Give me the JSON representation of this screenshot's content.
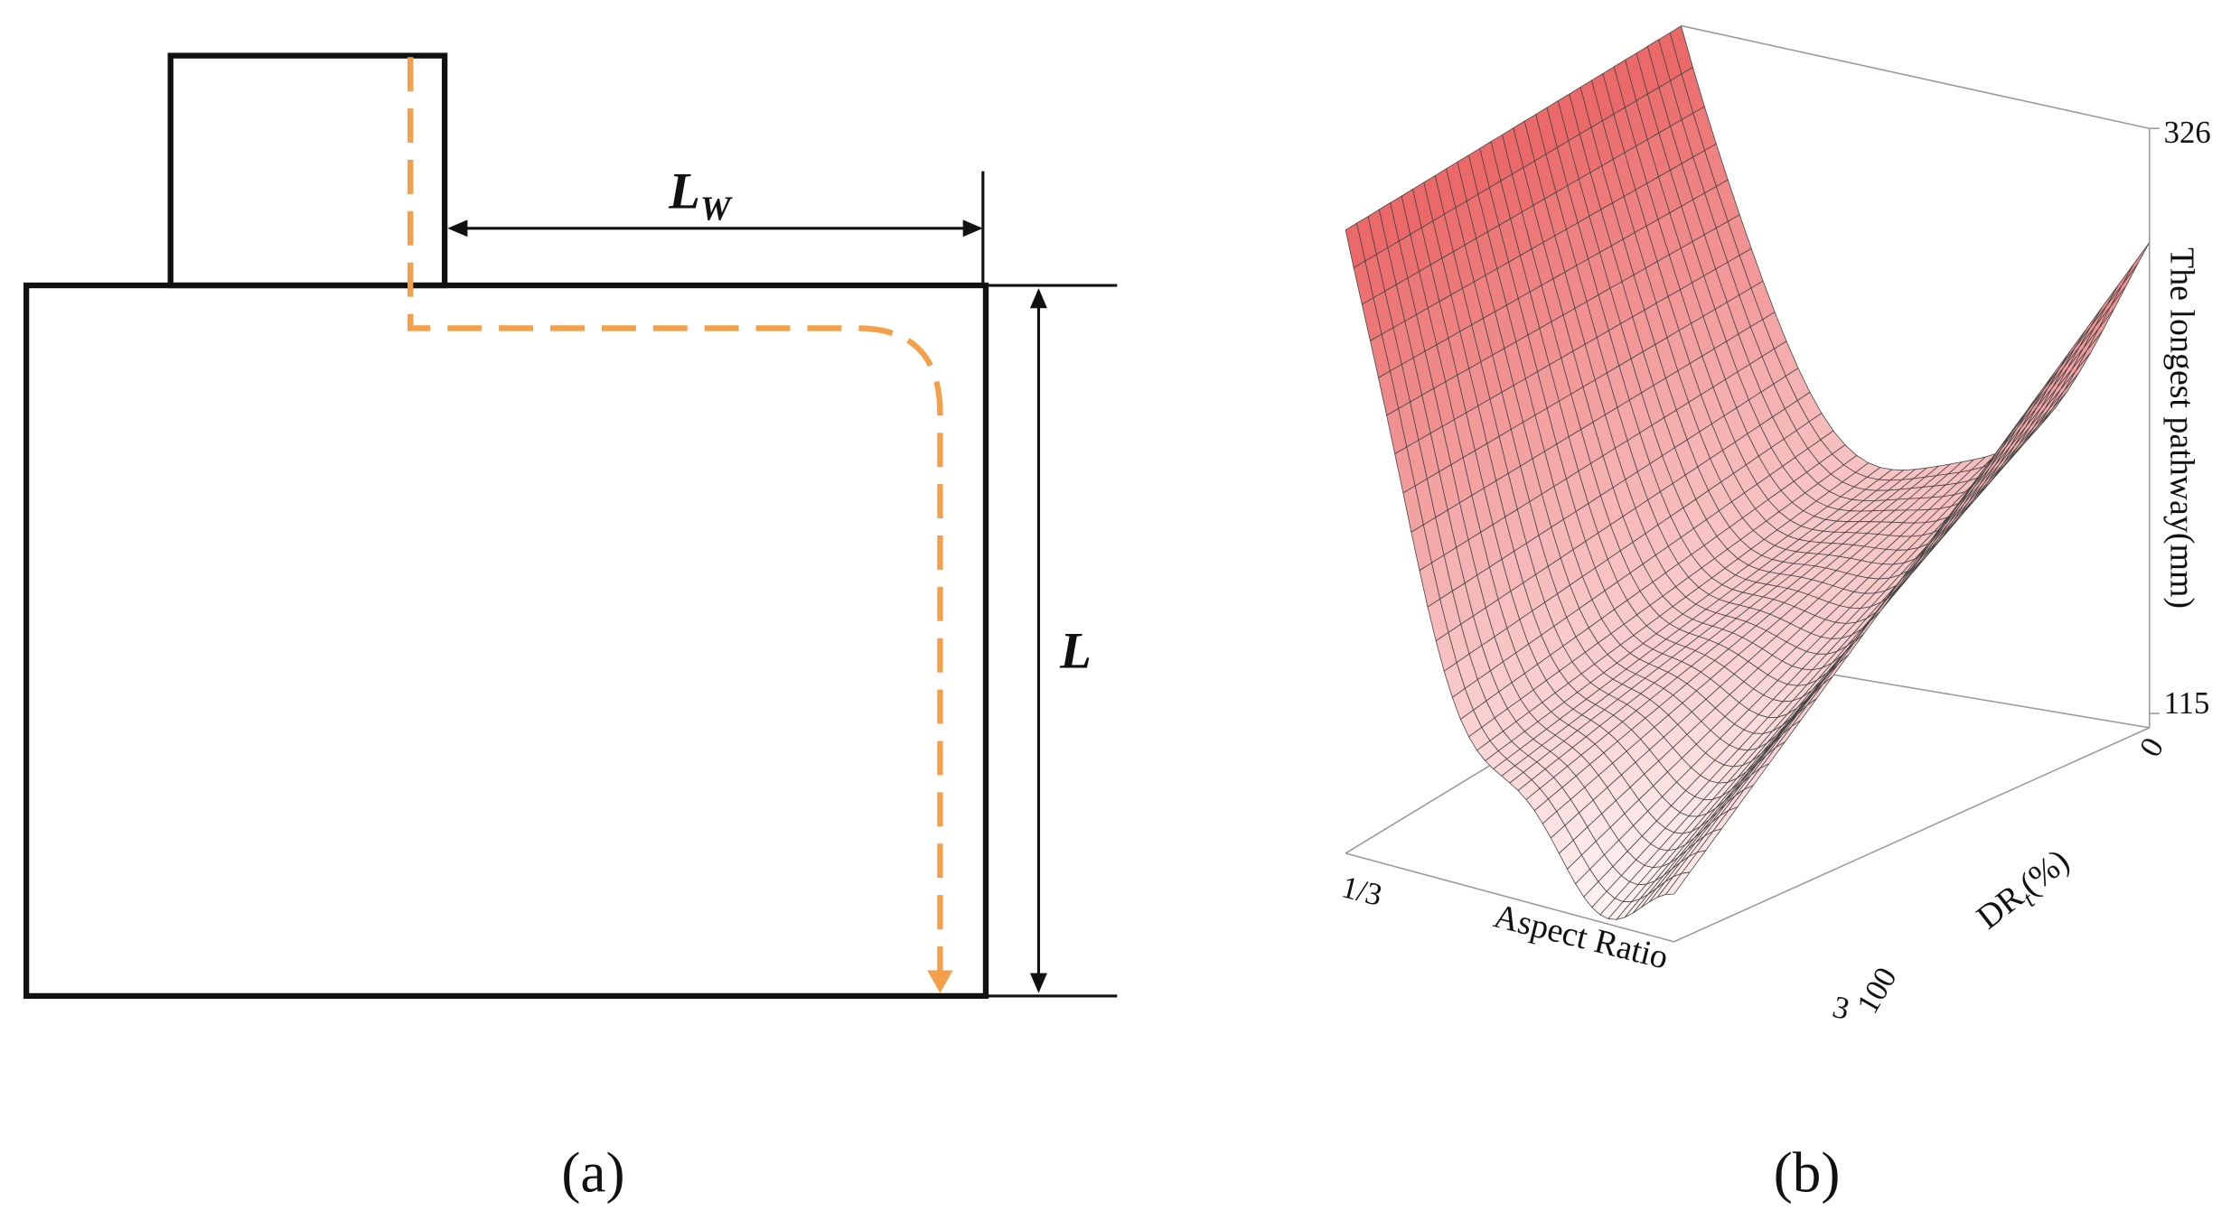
{
  "panel_a": {
    "caption": "(a)",
    "width_label": "L",
    "width_subscript": "W",
    "length_label": "L"
  },
  "panel_b": {
    "caption": "(b)",
    "z_axis_title": "The longest pathway(mm)",
    "z_max": "326",
    "z_min": "115",
    "x_axis_title": "Aspect Ratio",
    "x_start": "1/3",
    "x_end": "3",
    "y_axis_title": "DR",
    "y_axis_subscript": "t",
    "y_axis_unit": "(%)",
    "y_start": "0",
    "y_end": "100"
  }
}
